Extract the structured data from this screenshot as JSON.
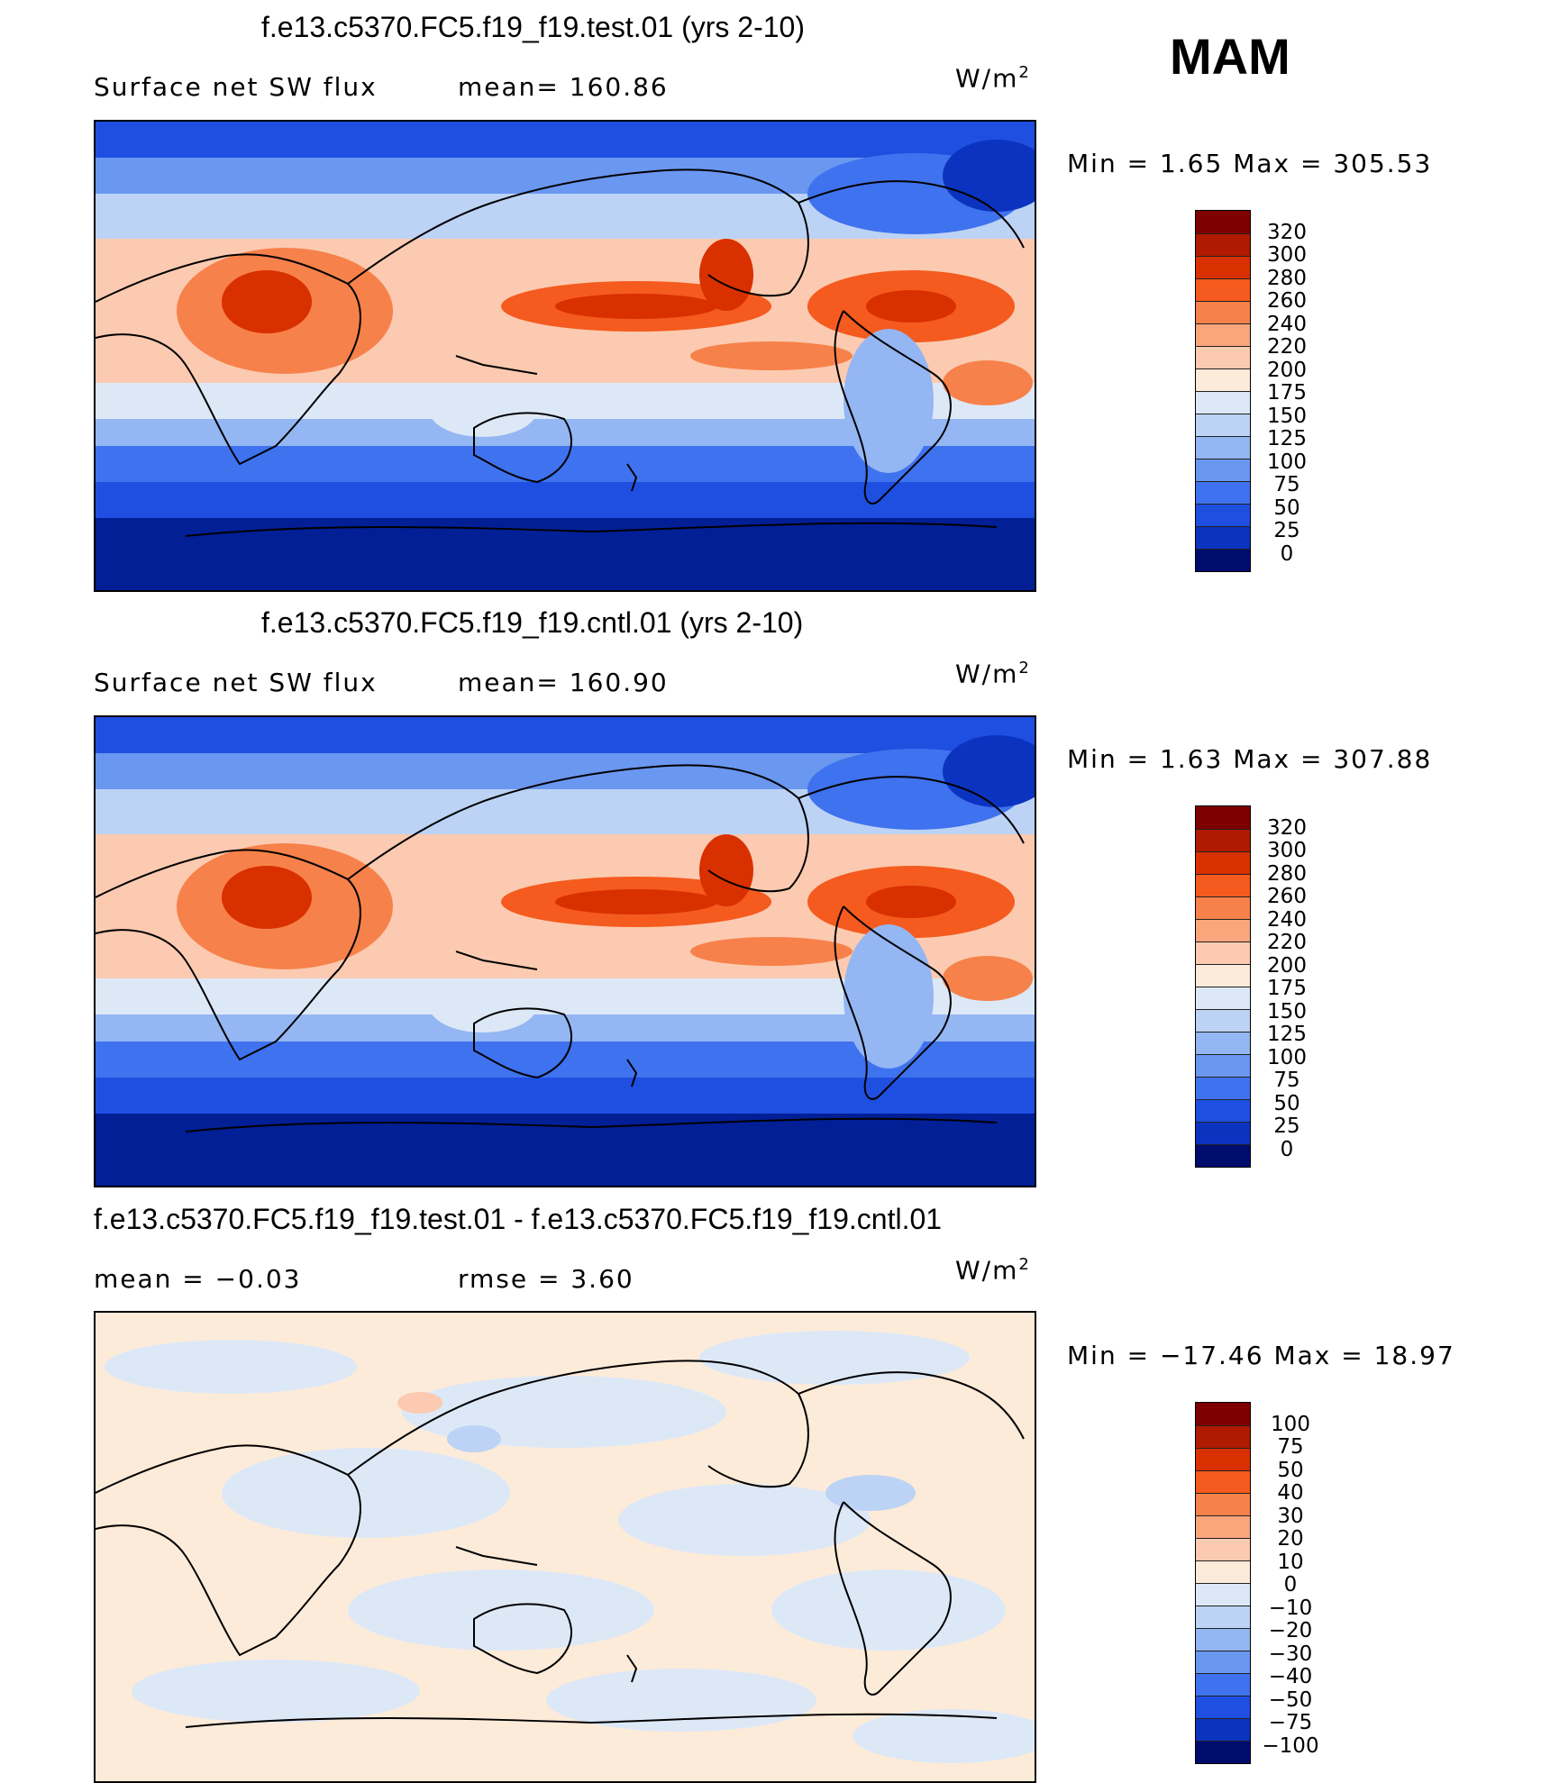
{
  "season": "MAM",
  "panels": [
    {
      "title": "f.e13.c5370.FC5.f19_f19.test.01 (yrs 2-10)",
      "left_label": "Surface net SW flux",
      "mid_label": "mean= 160.86",
      "units_base": "W/m",
      "units_sup": "2",
      "minmax": "Min  =    1.65  Max  =  305.53",
      "colorbar_labels": [
        "320",
        "300",
        "280",
        "260",
        "240",
        "220",
        "200",
        "175",
        "150",
        "125",
        "100",
        "75",
        "50",
        "25",
        "0"
      ],
      "palette": "abs"
    },
    {
      "title": "f.e13.c5370.FC5.f19_f19.cntl.01 (yrs 2-10)",
      "left_label": "Surface net SW flux",
      "mid_label": "mean= 160.90",
      "units_base": "W/m",
      "units_sup": "2",
      "minmax": "Min  =    1.63  Max  =  307.88",
      "colorbar_labels": [
        "320",
        "300",
        "280",
        "260",
        "240",
        "220",
        "200",
        "175",
        "150",
        "125",
        "100",
        "75",
        "50",
        "25",
        "0"
      ],
      "palette": "abs"
    },
    {
      "title": "f.e13.c5370.FC5.f19_f19.test.01 - f.e13.c5370.FC5.f19_f19.cntl.01",
      "left_label": "mean  =   −0.03",
      "mid_label": "rmse  =    3.60",
      "units_base": "W/m",
      "units_sup": "2",
      "minmax": "Min  = −17.46  Max  =   18.97",
      "colorbar_labels": [
        "100",
        "75",
        "50",
        "40",
        "30",
        "20",
        "10",
        "0",
        "−10",
        "−20",
        "−30",
        "−40",
        "−50",
        "−75",
        "−100"
      ],
      "palette": "diff"
    }
  ],
  "colors": {
    "abs": [
      "#7f0000",
      "#b01a00",
      "#d93000",
      "#f55a1e",
      "#f7814a",
      "#f9a67d",
      "#fbcab0",
      "#fdebd9",
      "#dde8f7",
      "#bcd3f5",
      "#94b6f2",
      "#6a97f0",
      "#3f72ee",
      "#1f4fe0",
      "#0c33c0",
      "#021f96",
      "#000c6e"
    ],
    "diff": [
      "#7f0000",
      "#b01a00",
      "#d93000",
      "#f55a1e",
      "#f7814a",
      "#f9a67d",
      "#fbcab0",
      "#fdebd9",
      "#dde8f7",
      "#bcd3f5",
      "#94b6f2",
      "#6a97f0",
      "#3f72ee",
      "#1f4fe0",
      "#0c33c0",
      "#021f96",
      "#000c6e"
    ]
  }
}
